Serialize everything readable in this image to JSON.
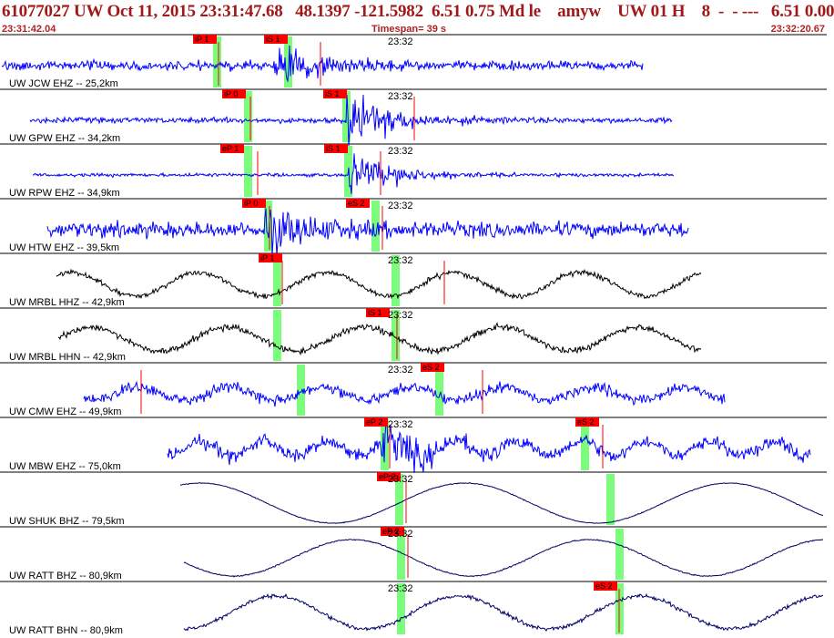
{
  "title": {
    "text": "61077027 UW Oct 11, 2015 23:31:47.68   48.1397 -121.5982  6.51 0.75 Md le    amyw    UW 01 H    8  -  - ---   6.51 0.00",
    "start_time": "23:31:42.04",
    "timespan": "Timespan=  39 s",
    "end_time": "23:32:20.67"
  },
  "colors": {
    "title": "#a01818",
    "short_period_trace": "#0000ff",
    "broadband_trace": "#000000",
    "long_period_trace": "#000066",
    "pick_box": "#ff0000",
    "pick_window": "#7cfc7c"
  },
  "time_marker": "23:32",
  "traces": [
    {
      "label": "UW JCW EHZ -- 25,2km",
      "color": "short_period_trace",
      "picks": [
        "iP 1",
        "iS 1"
      ]
    },
    {
      "label": "UW GPW EHZ -- 34,2km",
      "color": "short_period_trace",
      "picks": [
        "iP 0",
        "iS 1"
      ]
    },
    {
      "label": "UW RPW EHZ -- 34,9km",
      "color": "short_period_trace",
      "picks": [
        "eP 1",
        "iS 1"
      ]
    },
    {
      "label": "UW HTW EHZ -- 39,5km",
      "color": "short_period_trace",
      "picks": [
        "iP 0",
        "eS 2"
      ]
    },
    {
      "label": "UW MRBL HHZ -- 42,9km",
      "color": "broadband_trace",
      "picks": [
        "iP 1"
      ]
    },
    {
      "label": "UW MRBL HHN -- 42,9km",
      "color": "broadband_trace",
      "picks": [
        "iS 1"
      ]
    },
    {
      "label": "UW CMW EHZ -- 49,9km",
      "color": "short_period_trace",
      "picks": [
        "eS 2"
      ]
    },
    {
      "label": "UW MBW EHZ -- 75,0km",
      "color": "short_period_trace",
      "picks": [
        "eP 2",
        "eS 2"
      ]
    },
    {
      "label": "UW SHUK BHZ -- 79,5km",
      "color": "long_period_trace",
      "picks": [
        "eP 2"
      ]
    },
    {
      "label": "UW RATT BHZ -- 80,9km",
      "color": "long_period_trace",
      "picks": [
        "eP 2"
      ]
    },
    {
      "label": "UW RATT BHN -- 80,9km",
      "color": "long_period_trace",
      "picks": [
        "eS 2"
      ]
    }
  ]
}
